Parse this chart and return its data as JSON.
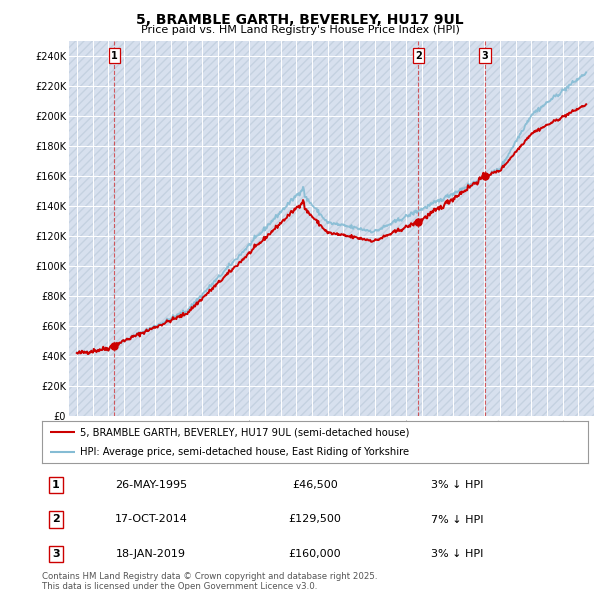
{
  "title": "5, BRAMBLE GARTH, BEVERLEY, HU17 9UL",
  "subtitle": "Price paid vs. HM Land Registry's House Price Index (HPI)",
  "legend_line1": "5, BRAMBLE GARTH, BEVERLEY, HU17 9UL (semi-detached house)",
  "legend_line2": "HPI: Average price, semi-detached house, East Riding of Yorkshire",
  "footer": "Contains HM Land Registry data © Crown copyright and database right 2025.\nThis data is licensed under the Open Government Licence v3.0.",
  "sale_points": [
    {
      "label": "1",
      "date_x": 1995.4,
      "price": 46500
    },
    {
      "label": "2",
      "date_x": 2014.8,
      "price": 129500
    },
    {
      "label": "3",
      "date_x": 2019.05,
      "price": 160000
    }
  ],
  "sale_annotations": [
    {
      "label": "1",
      "date": "26-MAY-1995",
      "price": "£46,500",
      "hpi_diff": "3% ↓ HPI"
    },
    {
      "label": "2",
      "date": "17-OCT-2014",
      "price": "£129,500",
      "hpi_diff": "7% ↓ HPI"
    },
    {
      "label": "3",
      "date": "18-JAN-2019",
      "price": "£160,000",
      "hpi_diff": "3% ↓ HPI"
    }
  ],
  "hpi_line_color": "#85bcd4",
  "sale_line_color": "#cc0000",
  "sale_dot_color": "#cc0000",
  "vline_color": "#cc0000",
  "background_plot": "#e8eef8",
  "ylim": [
    0,
    250000
  ],
  "yticks": [
    0,
    20000,
    40000,
    60000,
    80000,
    100000,
    120000,
    140000,
    160000,
    180000,
    200000,
    220000,
    240000
  ],
  "xlim_start": 1992.5,
  "xlim_end": 2026.0,
  "xticks": [
    1993,
    1994,
    1995,
    1996,
    1997,
    1998,
    1999,
    2000,
    2001,
    2002,
    2003,
    2004,
    2005,
    2006,
    2007,
    2008,
    2009,
    2010,
    2011,
    2012,
    2013,
    2014,
    2015,
    2016,
    2017,
    2018,
    2019,
    2020,
    2021,
    2022,
    2023,
    2024,
    2025
  ]
}
